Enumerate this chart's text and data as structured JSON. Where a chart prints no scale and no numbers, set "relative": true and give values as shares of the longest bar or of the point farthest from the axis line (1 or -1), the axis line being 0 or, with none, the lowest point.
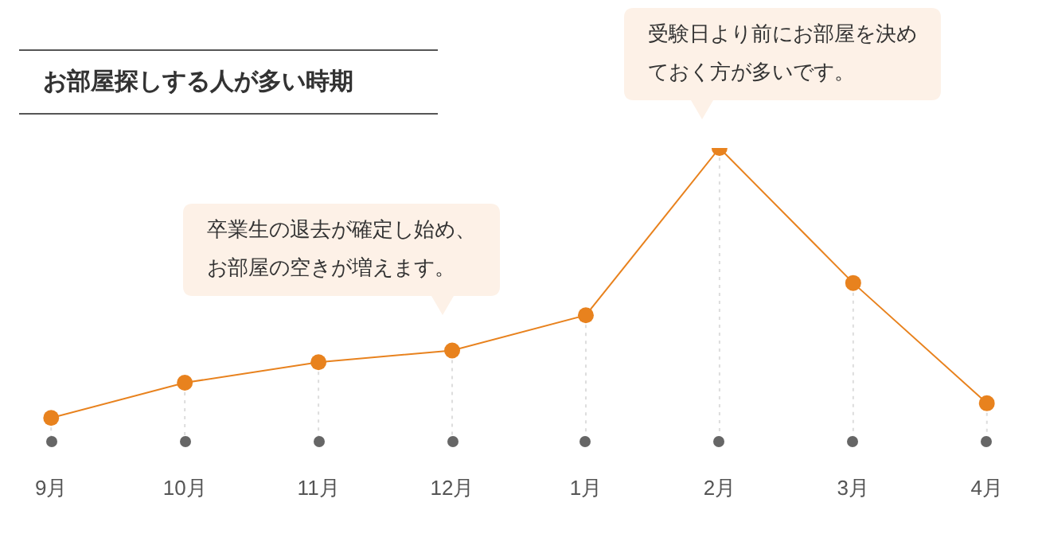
{
  "chart_data": {
    "type": "line",
    "title": "お部屋探しする人が多い時期",
    "categories": [
      "9月",
      "10月",
      "11月",
      "12月",
      "1月",
      "2月",
      "3月",
      "4月"
    ],
    "values": [
      0.08,
      0.2,
      0.27,
      0.31,
      0.43,
      1,
      0.54,
      0.13
    ],
    "color": "#e8821e",
    "relative": true,
    "marker": "circle",
    "annotations": [
      "卒業生の退去が確定し始め、お部屋の空きが増えます。",
      "受験日より前にお部屋を決めておく方が多いです。"
    ]
  }
}
